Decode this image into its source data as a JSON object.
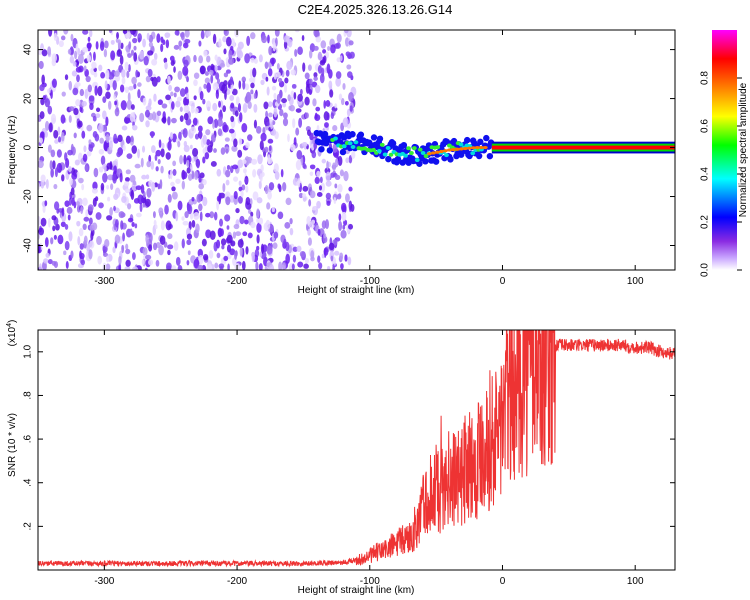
{
  "page_title": "C2E4.2025.326.13.26.G14",
  "chart_data": [
    {
      "type": "heatmap",
      "xlabel": "Height of straight line (km)",
      "ylabel": "Frequency (Hz)",
      "xlim": [
        -350,
        130
      ],
      "ylim": [
        -50,
        48
      ],
      "xticks": [
        -300,
        -200,
        -100,
        0,
        100
      ],
      "yticks": [
        -40,
        -20,
        0,
        20,
        40
      ],
      "grid": false,
      "colorbar": {
        "label": "Normalized spectral amplitude",
        "range": [
          0,
          1
        ],
        "ticks": [
          0.0,
          0.2,
          0.4,
          0.6,
          0.8
        ],
        "tick_labels": [
          "0.0",
          "0.2",
          "0.4",
          "0.6",
          "0.8"
        ],
        "colors": [
          "#ffffff",
          "#8a2be2",
          "#0000ff",
          "#00ffff",
          "#00ff00",
          "#ffff00",
          "#ff7f00",
          "#ff0000",
          "#ff00ff"
        ]
      },
      "features": {
        "noise_region_x": [
          -350,
          -120
        ],
        "signal_track": [
          [
            -140,
            3
          ],
          [
            -120,
            2
          ],
          [
            -100,
            1
          ],
          [
            -80,
            -2
          ],
          [
            -60,
            -3
          ],
          [
            -40,
            -1
          ],
          [
            -20,
            0
          ],
          [
            0,
            0
          ],
          [
            130,
            0
          ]
        ]
      }
    },
    {
      "type": "line",
      "xlabel": "Height of straight line (km)",
      "ylabel": "SNR (10 * v/v)",
      "yunit": "(x10",
      "yunit_exp": "4",
      "xlim": [
        -350,
        130
      ],
      "ylim": [
        0.0,
        1.1
      ],
      "xticks": [
        -300,
        -200,
        -100,
        0,
        100
      ],
      "yticks": [
        0.2,
        0.4,
        0.6,
        0.8,
        1.0
      ],
      "grid": false,
      "color": "#ee3333",
      "series": [
        {
          "x": [
            -350,
            -300,
            -250,
            -200,
            -150,
            -120,
            -105,
            -95,
            -90,
            -80,
            -70,
            -65,
            -60,
            -55,
            -50,
            -45,
            -40,
            -35,
            -30,
            -25,
            -20,
            -15,
            -10,
            -5,
            0,
            5,
            10,
            20,
            30,
            40,
            50,
            60,
            70,
            80,
            90,
            100,
            110,
            120,
            130
          ],
          "y": [
            0.03,
            0.03,
            0.03,
            0.03,
            0.03,
            0.035,
            0.05,
            0.08,
            0.09,
            0.12,
            0.15,
            0.2,
            0.3,
            0.3,
            0.38,
            0.35,
            0.42,
            0.4,
            0.45,
            0.5,
            0.5,
            0.58,
            0.6,
            0.6,
            0.7,
            0.82,
            0.9,
            0.95,
            1.0,
            1.03,
            1.03,
            1.03,
            1.03,
            1.03,
            1.03,
            1.02,
            1.02,
            1.0,
            0.99
          ]
        }
      ]
    }
  ]
}
